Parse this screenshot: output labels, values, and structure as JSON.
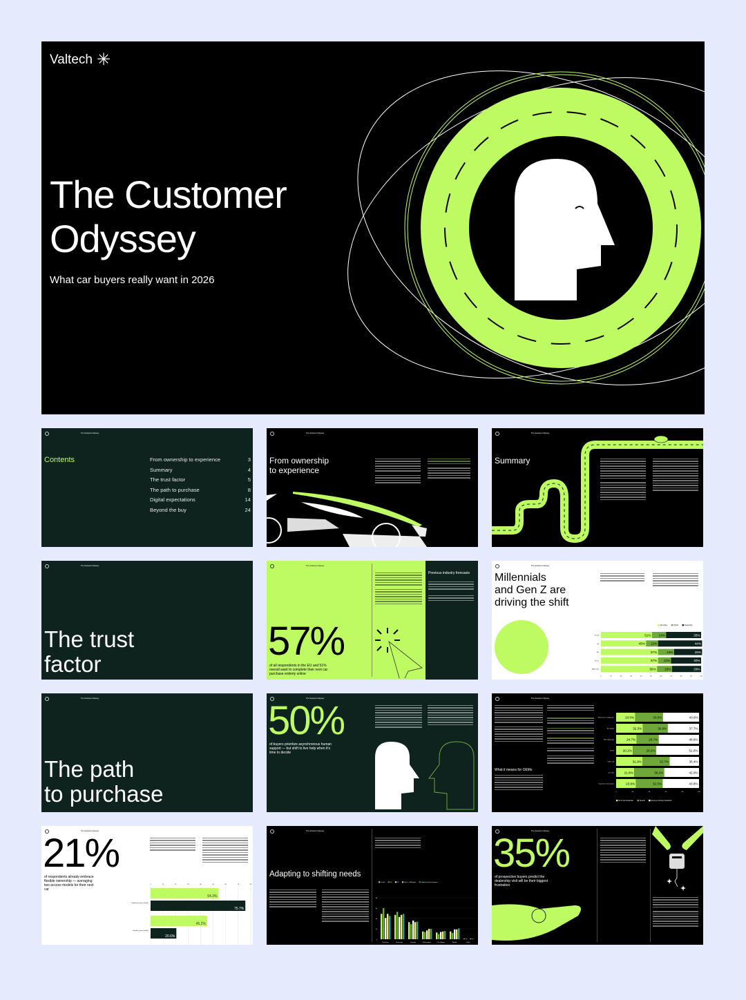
{
  "colors": {
    "background": "#e5ebfc",
    "lime": "#befa62",
    "dark_green": "#0e231d",
    "black": "#000000"
  },
  "hero": {
    "brand": "Valtech",
    "brand_icon": "asterisk-icon",
    "title_line1": "The Customer",
    "title_line2": "Odyssey",
    "subtitle": "What car buyers really want in 2026"
  },
  "header_title": "The Customer Odyssey",
  "contents": {
    "title": "Contents",
    "items": [
      {
        "label": "From ownership to experience",
        "page": "3"
      },
      {
        "label": "Summary",
        "page": "4"
      },
      {
        "label": "The trust factor",
        "page": "5"
      },
      {
        "label": "The path to purchase",
        "page": "8"
      },
      {
        "label": "Digital expectations",
        "page": "14"
      },
      {
        "label": "Beyond the buy",
        "page": "24"
      }
    ]
  },
  "ownership": {
    "title_line1": "From ownership",
    "title_line2": "to experience"
  },
  "summary": {
    "title": "Summary"
  },
  "trust": {
    "title_line1": "The trust",
    "title_line2": "factor"
  },
  "stat57": {
    "value": "57%",
    "caption": "of all respondents in the EU and 51% overall want to complete their next car purchase entirely online",
    "sidebar_title": "Previous industry forecasts"
  },
  "millennials": {
    "title_line1": "Millennials",
    "title_line2": "and Gen Z are",
    "title_line3": "driving the shift",
    "chart_data": {
      "type": "bar",
      "orientation": "horizontal",
      "stacked": true,
      "categories": [
        "Overall",
        "US",
        "EU",
        "Gen Z",
        "Millennials"
      ],
      "series": [
        {
          "name": "Full online",
          "values": [
            51,
            45,
            57,
            57,
            56
          ],
          "color": "#befa62"
        },
        {
          "name": "Hybrid",
          "values": [
            14,
            12,
            16,
            13,
            15
          ],
          "color": "#6fa83a"
        },
        {
          "name": "Dealership",
          "values": [
            35,
            44,
            28,
            30,
            29
          ],
          "color": "#0e231d"
        }
      ],
      "xlim": [
        0,
        100
      ],
      "xticks": [
        "0",
        "10",
        "20",
        "30",
        "40",
        "50",
        "60",
        "70",
        "80",
        "90",
        "100"
      ]
    }
  },
  "path": {
    "title_line1": "The path",
    "title_line2": "to purchase"
  },
  "stat50": {
    "value": "50%",
    "caption": "of buyers prioritize asynchronous human support — but shift to live help when it's time to decide"
  },
  "oems": {
    "heading": "What it means for OEMs",
    "chart_data": {
      "type": "bar",
      "orientation": "horizontal",
      "stacked": true,
      "categories": [
        "Self-service configurator",
        "AI chatbot",
        "Messaging app",
        "Email",
        "Video call",
        "Live chat",
        "In-person conversation"
      ],
      "series": [
        {
          "name": "No to low interaction",
          "values": [
            23.0,
            32.3,
            24.7,
            20.2,
            31.9,
            21.8,
            23.9
          ],
          "color": "#befa62"
        },
        {
          "name": "Neutral",
          "values": [
            33.5,
            30.0,
            26.7,
            28.2,
            32.7,
            36.2,
            32.3
          ],
          "color": "#6fa83a"
        },
        {
          "name": "Strong to primary interaction",
          "values": [
            43.6,
            37.7,
            48.6,
            51.6,
            35.4,
            42.0,
            43.8
          ],
          "color": "#ffffff"
        }
      ],
      "xlim": [
        0,
        100
      ],
      "xticks": [
        "0",
        "20",
        "40",
        "60",
        "80",
        "100"
      ]
    }
  },
  "stat21": {
    "value": "21%",
    "caption": "of respondents already embrace flexible ownership — averaging two access models for their next car",
    "chart_data": {
      "type": "bar",
      "orientation": "horizontal",
      "categories": [
        "Traditional access models",
        "Flexible access models"
      ],
      "series": [
        {
          "values": [
            54.3,
            45.2
          ],
          "color": "#befa62"
        },
        {
          "values": [
            75.7,
            20.6
          ],
          "color": "#0e231d"
        }
      ],
      "xlim": [
        0,
        80
      ],
      "xticks": [
        "0",
        "10",
        "20",
        "30",
        "40",
        "50",
        "60",
        "70",
        "80"
      ]
    }
  },
  "adapting": {
    "title": "Adapting to shifting needs",
    "chart_data": {
      "type": "bar",
      "grouped": true,
      "categories": [
        "Purchase",
        "Financing",
        "Leasing",
        "Subscription",
        "Car sharing",
        "Rental",
        "Other"
      ],
      "series": [
        {
          "name": "Overall",
          "values": [
            49,
            47,
            33,
            15,
            13,
            15,
            1
          ],
          "color": "#befa62"
        },
        {
          "name": "US",
          "values": [
            60,
            53,
            29,
            14,
            10,
            12,
            1
          ],
          "color": "#6fa83a"
        },
        {
          "name": "EU",
          "values": [
            41,
            43,
            36,
            17,
            14,
            19,
            0
          ],
          "color": "#ffffff"
        },
        {
          "name": "Gen Z + Millennials",
          "values": [
            49,
            47,
            33,
            20,
            15,
            19,
            1
          ],
          "color": "#e4f56a"
        },
        {
          "name": "Digital-first online shoppers",
          "values": [
            45,
            49,
            34,
            20,
            16,
            21,
            1
          ],
          "color": "#1fa39a"
        }
      ],
      "ylim": [
        0,
        80
      ],
      "yticks": [
        "0",
        "20",
        "40",
        "60",
        "80"
      ]
    }
  },
  "stat35": {
    "value": "35%",
    "caption": "of prospective buyers predict the dealership visit will be their biggest frustration"
  }
}
